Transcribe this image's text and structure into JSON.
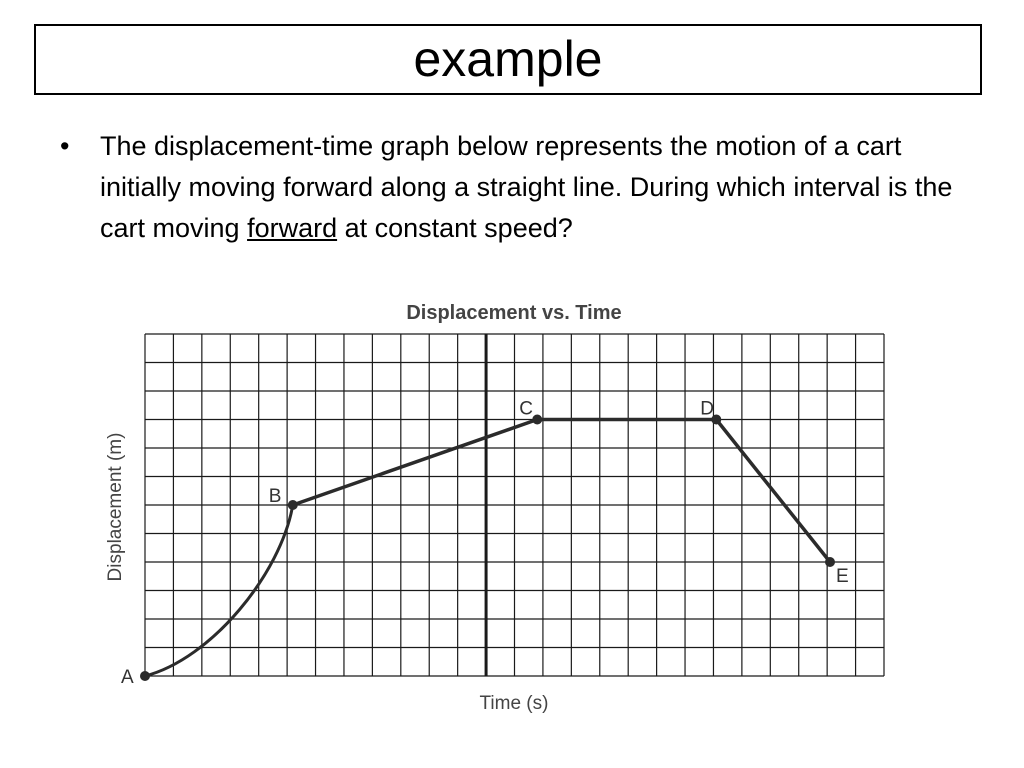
{
  "slide": {
    "title": "example",
    "bullet": {
      "marker": "•",
      "text_before": "The displacement-time graph below represents the motion of a cart initially moving forward along a straight line. During which interval is the cart moving ",
      "underlined": "forward",
      "text_after": " at constant speed?"
    }
  },
  "chart_data": {
    "type": "line",
    "title": "Displacement vs. Time",
    "xlabel": "Time (s)",
    "ylabel": "Displacement (m)",
    "grid": true,
    "xlim": [
      0,
      26
    ],
    "ylim": [
      0,
      12
    ],
    "grid_columns": 26,
    "grid_rows": 12,
    "emphasized_vertical_line_x": 12,
    "points": [
      {
        "label": "A",
        "x": 0,
        "y": 0
      },
      {
        "label": "B",
        "x": 5.2,
        "y": 6
      },
      {
        "label": "C",
        "x": 13.8,
        "y": 9
      },
      {
        "label": "D",
        "x": 20.1,
        "y": 9
      },
      {
        "label": "E",
        "x": 24.1,
        "y": 4
      }
    ],
    "segments": [
      {
        "from": "A",
        "to": "B",
        "shape": "curve"
      },
      {
        "from": "B",
        "to": "C",
        "shape": "straight"
      },
      {
        "from": "C",
        "to": "D",
        "shape": "straight"
      },
      {
        "from": "D",
        "to": "E",
        "shape": "straight"
      }
    ],
    "colors": {
      "grid": "#1a1a1a",
      "line": "#2b2b2b",
      "text": "#444444"
    }
  }
}
